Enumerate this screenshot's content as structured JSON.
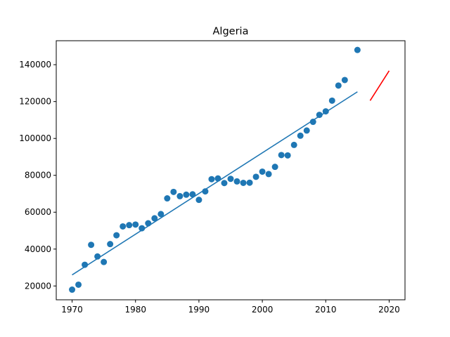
{
  "chart_data": {
    "type": "scatter",
    "title": "Algeria",
    "xlabel": "",
    "ylabel": "",
    "xlim": [
      1967.5,
      2022.5
    ],
    "ylim": [
      12500,
      153000
    ],
    "xticks": [
      1970,
      1980,
      1990,
      2000,
      2010,
      2020
    ],
    "yticks": [
      20000,
      40000,
      60000,
      80000,
      100000,
      120000,
      140000
    ],
    "grid": false,
    "legend": "none",
    "colors": {
      "points": "#1f77b4",
      "fit": "#1f77b4",
      "forecast": "#ff0000"
    },
    "series": [
      {
        "type": "scatter",
        "x": [
          1970,
          1971,
          1972,
          1973,
          1974,
          1975,
          1976,
          1977,
          1978,
          1979,
          1980,
          1981,
          1982,
          1983,
          1984,
          1985,
          1986,
          1987,
          1988,
          1989,
          1990,
          1991,
          1992,
          1993,
          1994,
          1995,
          1996,
          1997,
          1998,
          1999,
          2000,
          2001,
          2002,
          2003,
          2004,
          2005,
          2006,
          2007,
          2008,
          2009,
          2010,
          2011,
          2012,
          2013,
          2015
        ],
        "y": [
          18000,
          20700,
          31500,
          42300,
          36000,
          33000,
          42700,
          47500,
          52300,
          53000,
          53300,
          51300,
          54000,
          56700,
          59000,
          67500,
          71000,
          68700,
          69500,
          69700,
          66700,
          71300,
          77900,
          78300,
          75800,
          78100,
          76700,
          75900,
          76000,
          79200,
          82000,
          80700,
          84600,
          91000,
          90800,
          96500,
          101500,
          104300,
          109000,
          112800,
          114700,
          120500,
          128700,
          131700,
          148000
        ]
      },
      {
        "type": "line",
        "x": [
          1970,
          2015
        ],
        "y": [
          26000,
          125300
        ]
      },
      {
        "type": "line",
        "x": [
          2017,
          2020
        ],
        "y": [
          120500,
          136700
        ]
      }
    ]
  }
}
